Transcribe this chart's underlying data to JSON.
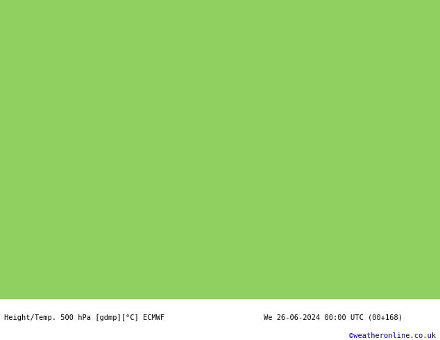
{
  "background_green": "#90d060",
  "land_color": "#90d060",
  "sea_color": "#d0d0d0",
  "coast_color": "#808080",
  "contour_color": "#000000",
  "contour_linewidth": 1.8,
  "label_fontsize": 9,
  "bottom_text_left": "Height/Temp. 500 hPa [gdmp][°C] ECMWF",
  "bottom_text_right": "We 26-06-2024 00:00 UTC (00+168)",
  "bottom_text_credit": "©weatheronline.co.uk",
  "bottom_text_color": "#000000",
  "credit_color": "#0000cc",
  "lon_min": -15,
  "lon_max": 50,
  "lat_min": 24,
  "lat_max": 57,
  "fig_width": 6.34,
  "fig_height": 4.9,
  "dpi": 100
}
